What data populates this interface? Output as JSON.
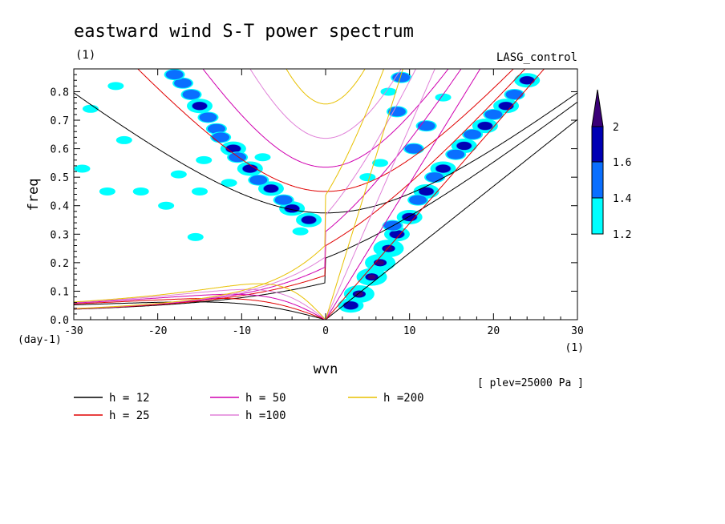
{
  "title": "eastward wind S-T power spectrum",
  "unit_label": "(1)",
  "experiment": "LASG_control",
  "chart_data": {
    "type": "contour",
    "xlabel": "wvn",
    "ylabel": "freq",
    "x_unit": "(1)",
    "y_unit": "(day-1)",
    "xlim": [
      -30,
      30
    ],
    "ylim": [
      0,
      0.88
    ],
    "x_ticks": [
      -30,
      -20,
      -10,
      0,
      10,
      20,
      30
    ],
    "x_tick_labels": [
      "-30",
      "-20",
      "-10",
      "0",
      "10",
      "20",
      "30"
    ],
    "y_ticks": [
      0,
      0.1,
      0.2,
      0.3,
      0.4,
      0.5,
      0.6,
      0.7,
      0.8
    ],
    "y_tick_labels": [
      "0.0",
      "0.1",
      "0.2",
      "0.3",
      "0.4",
      "0.5",
      "0.6",
      "0.7",
      "0.8"
    ],
    "colorbar": {
      "levels": [
        1.2,
        1.4,
        1.6,
        2
      ],
      "labels": [
        "1.2",
        "1.4",
        "1.6",
        "2"
      ],
      "colors": [
        "#00ffff",
        "#0a6fff",
        "#0000b4",
        "#3a0078"
      ]
    },
    "annotation": "[ plev=25000 Pa ]",
    "dispersion_curves": [
      {
        "h": 12,
        "label": "h = 12",
        "color": "#000000"
      },
      {
        "h": 25,
        "label": "h = 25",
        "color": "#e00000"
      },
      {
        "h": 50,
        "label": "h = 50",
        "color": "#d000b0"
      },
      {
        "h": 100,
        "label": "h =100",
        "color": "#e080d8"
      },
      {
        "h": 200,
        "label": "h =200",
        "color": "#e8c000"
      }
    ],
    "power_blobs": [
      {
        "x": 6.5,
        "y": 0.2,
        "level": 3
      },
      {
        "x": 5.5,
        "y": 0.15,
        "level": 3
      },
      {
        "x": 7.5,
        "y": 0.25,
        "level": 3
      },
      {
        "x": 4.0,
        "y": 0.09,
        "level": 3
      },
      {
        "x": 8.5,
        "y": 0.3,
        "level": 2
      },
      {
        "x": 10.0,
        "y": 0.36,
        "level": 2
      },
      {
        "x": 12.0,
        "y": 0.45,
        "level": 2
      },
      {
        "x": 14.0,
        "y": 0.53,
        "level": 2
      },
      {
        "x": 16.5,
        "y": 0.61,
        "level": 2
      },
      {
        "x": 19.0,
        "y": 0.68,
        "level": 2
      },
      {
        "x": 21.5,
        "y": 0.75,
        "level": 2
      },
      {
        "x": 24.0,
        "y": 0.84,
        "level": 2
      },
      {
        "x": 3.0,
        "y": 0.05,
        "level": 2
      },
      {
        "x": 8.0,
        "y": 0.33,
        "level": 1
      },
      {
        "x": 11.0,
        "y": 0.42,
        "level": 1
      },
      {
        "x": 13.0,
        "y": 0.5,
        "level": 1
      },
      {
        "x": 15.5,
        "y": 0.58,
        "level": 1
      },
      {
        "x": 17.5,
        "y": 0.65,
        "level": 1
      },
      {
        "x": 20.0,
        "y": 0.72,
        "level": 1
      },
      {
        "x": 22.5,
        "y": 0.79,
        "level": 1
      },
      {
        "x": 10.5,
        "y": 0.6,
        "level": 1
      },
      {
        "x": 8.5,
        "y": 0.73,
        "level": 1
      },
      {
        "x": 9.0,
        "y": 0.85,
        "level": 1
      },
      {
        "x": 12.0,
        "y": 0.68,
        "level": 1
      },
      {
        "x": 6.5,
        "y": 0.55,
        "level": 0
      },
      {
        "x": 7.5,
        "y": 0.8,
        "level": 0
      },
      {
        "x": 5.0,
        "y": 0.5,
        "level": 0
      },
      {
        "x": 14.0,
        "y": 0.78,
        "level": 0
      },
      {
        "x": -2.0,
        "y": 0.35,
        "level": 2
      },
      {
        "x": -4.0,
        "y": 0.39,
        "level": 2
      },
      {
        "x": -6.5,
        "y": 0.46,
        "level": 2
      },
      {
        "x": -9.0,
        "y": 0.53,
        "level": 2
      },
      {
        "x": -11.0,
        "y": 0.6,
        "level": 2
      },
      {
        "x": -13.0,
        "y": 0.67,
        "level": 1
      },
      {
        "x": -15.0,
        "y": 0.75,
        "level": 2
      },
      {
        "x": -17.0,
        "y": 0.83,
        "level": 1
      },
      {
        "x": -5.0,
        "y": 0.42,
        "level": 1
      },
      {
        "x": -8.0,
        "y": 0.49,
        "level": 1
      },
      {
        "x": -10.5,
        "y": 0.57,
        "level": 1
      },
      {
        "x": -12.5,
        "y": 0.64,
        "level": 1
      },
      {
        "x": -14.0,
        "y": 0.71,
        "level": 1
      },
      {
        "x": -16.0,
        "y": 0.79,
        "level": 1
      },
      {
        "x": -18.0,
        "y": 0.86,
        "level": 1
      },
      {
        "x": -7.5,
        "y": 0.57,
        "level": 0
      },
      {
        "x": -11.5,
        "y": 0.48,
        "level": 0
      },
      {
        "x": -14.5,
        "y": 0.56,
        "level": 0
      },
      {
        "x": -3.0,
        "y": 0.31,
        "level": 0
      },
      {
        "x": -15.0,
        "y": 0.45,
        "level": 0
      },
      {
        "x": -22.0,
        "y": 0.45,
        "level": 0
      },
      {
        "x": -26.0,
        "y": 0.45,
        "level": 0
      },
      {
        "x": -28.0,
        "y": 0.74,
        "level": 0
      },
      {
        "x": -24.0,
        "y": 0.63,
        "level": 0
      },
      {
        "x": -19.0,
        "y": 0.4,
        "level": 0
      },
      {
        "x": -15.5,
        "y": 0.29,
        "level": 0
      },
      {
        "x": -25.0,
        "y": 0.82,
        "level": 0
      },
      {
        "x": -17.5,
        "y": 0.51,
        "level": 0
      },
      {
        "x": -29.0,
        "y": 0.53,
        "level": 0
      }
    ]
  }
}
